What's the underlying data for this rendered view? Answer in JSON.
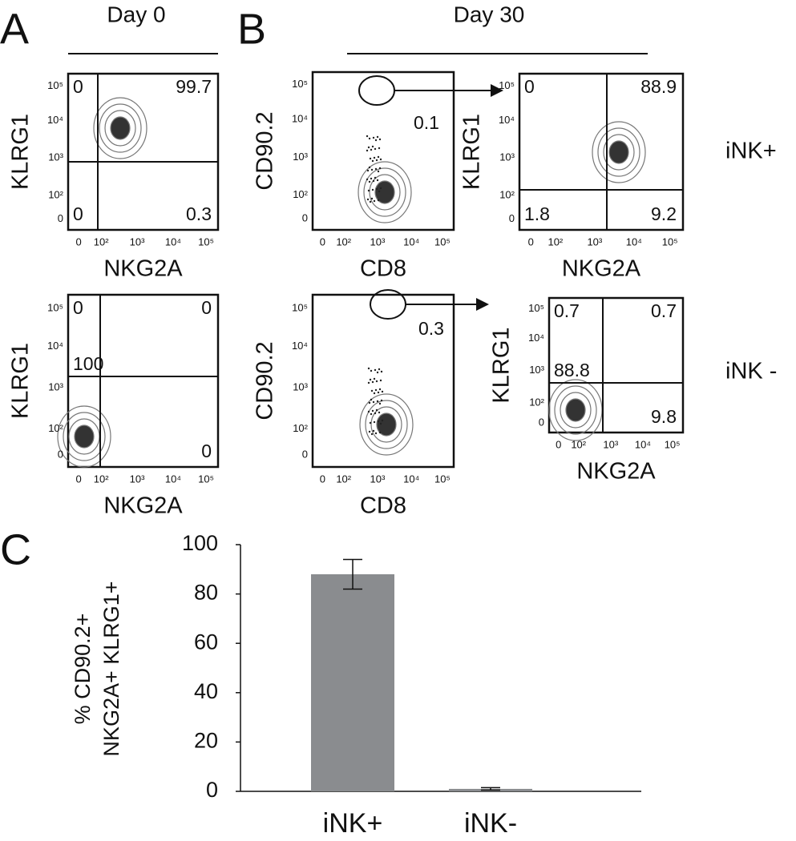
{
  "panel_letters": [
    "A",
    "B",
    "C"
  ],
  "headers": [
    "Day 0",
    "Day 30"
  ],
  "axis_tick_labels": [
    "0",
    "10²",
    "10³",
    "10⁴",
    "10⁵"
  ],
  "row_labels": [
    "iNK+",
    "iNK -"
  ],
  "plots": [
    {
      "xlabel": "NKG2A",
      "ylabel": "KLRG1",
      "quadrants": [
        0,
        99.7,
        0,
        0.3
      ]
    },
    {
      "xlabel": "NKG2A",
      "ylabel": "KLRG1",
      "quadrants": [
        0,
        0,
        100,
        0
      ]
    },
    {
      "xlabel": "CD8",
      "ylabel": "CD90.2",
      "gate": 0.1
    },
    {
      "xlabel": "NKG2A",
      "ylabel": "KLRG1",
      "quadrants": [
        0,
        88.9,
        1.8,
        9.2
      ]
    },
    {
      "xlabel": "CD8",
      "ylabel": "CD90.2",
      "gate": 0.3
    },
    {
      "xlabel": "NKG2A",
      "ylabel": "KLRG1",
      "quadrants": [
        0.7,
        0.7,
        88.8,
        9.8
      ]
    }
  ],
  "chart_data": {
    "type": "bar",
    "ylabel": [
      "% CD90.2+",
      "NKG2A+ KLRG1+"
    ],
    "categories": [
      "iNK+",
      "iNK-"
    ],
    "values": [
      88,
      1
    ],
    "errors": [
      6,
      0.5
    ],
    "color": "#8a8c8f",
    "ylim": [
      0,
      100
    ],
    "yticks": [
      0,
      20,
      40,
      60,
      80,
      100
    ]
  }
}
